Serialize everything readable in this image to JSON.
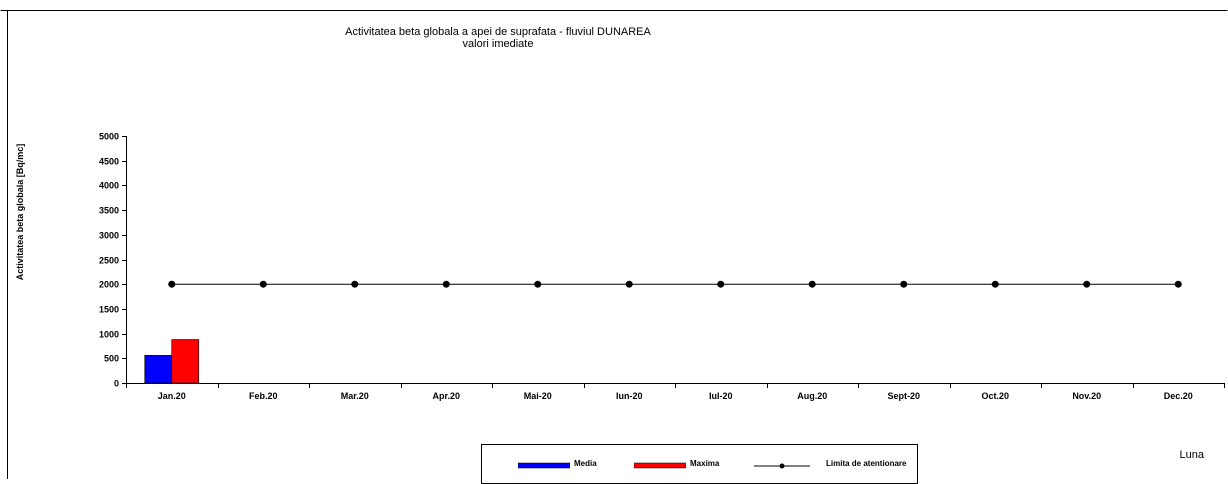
{
  "chart_data": {
    "type": "bar",
    "title": "Activitatea beta globala  a apei de suprafata  - fluviul DUNAREA",
    "subtitle": "valori imediate",
    "xlabel": "Luna",
    "ylabel": "Activitatea beta globala [Bq/mc]",
    "categories": [
      "Jan.20",
      "Feb.20",
      "Mar.20",
      "Apr.20",
      "Mai-20",
      "Iun-20",
      "Iul-20",
      "Aug.20",
      "Sept-20",
      "Oct.20",
      "Nov.20",
      "Dec.20"
    ],
    "ylim": [
      0,
      5000
    ],
    "yticks": [
      0,
      500,
      1000,
      1500,
      2000,
      2500,
      3000,
      3500,
      4000,
      4500,
      5000
    ],
    "series": [
      {
        "name": "Media",
        "kind": "bar",
        "color": "#0000ff",
        "values": [
          560,
          null,
          null,
          null,
          null,
          null,
          null,
          null,
          null,
          null,
          null,
          null
        ]
      },
      {
        "name": "Maxima",
        "kind": "bar",
        "color": "#ff0000",
        "values": [
          880,
          null,
          null,
          null,
          null,
          null,
          null,
          null,
          null,
          null,
          null,
          null
        ]
      },
      {
        "name": "Limita de atentionare",
        "kind": "line",
        "color": "#000000",
        "values": [
          2000,
          2000,
          2000,
          2000,
          2000,
          2000,
          2000,
          2000,
          2000,
          2000,
          2000,
          2000
        ]
      }
    ],
    "grid": false,
    "legend": "bottom"
  }
}
